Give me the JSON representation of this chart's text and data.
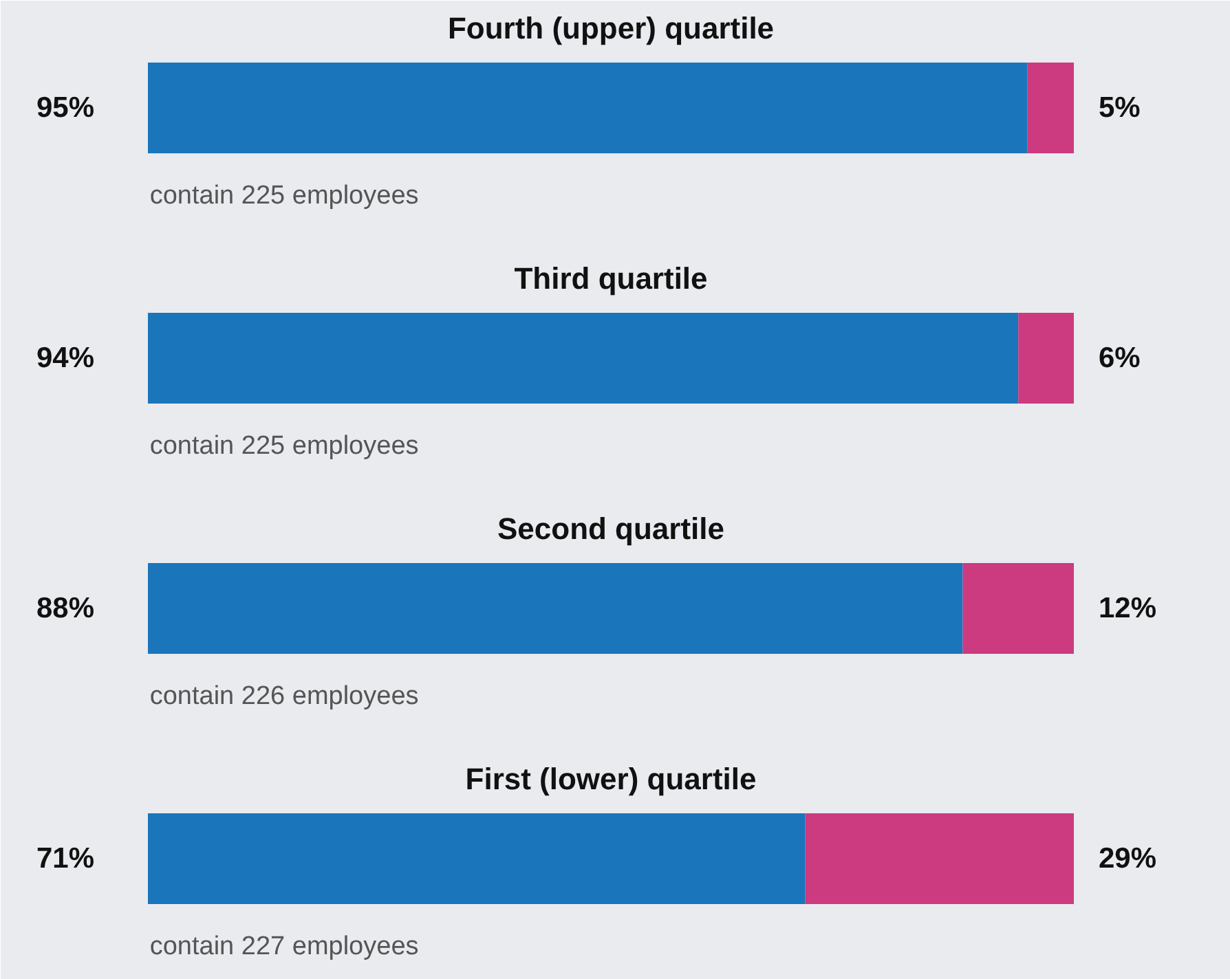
{
  "chart_data": {
    "type": "bar",
    "orientation": "horizontal",
    "stacked": true,
    "categories": [
      "Fourth (upper) quartile",
      "Third quartile",
      "Second quartile",
      "First (lower) quartile"
    ],
    "series": [
      {
        "color": "#1a75bb",
        "values": [
          95,
          94,
          88,
          71
        ],
        "value_labels": [
          "95%",
          "94%",
          "88%",
          "71%"
        ]
      },
      {
        "color": "#cc3a80",
        "values": [
          5,
          6,
          12,
          29
        ],
        "value_labels": [
          "5%",
          "6%",
          "12%",
          "29%"
        ]
      }
    ],
    "annotations": [
      "contain 225 employees",
      "contain 225 employees",
      "contain 226 employees",
      "contain 227 employees"
    ]
  }
}
